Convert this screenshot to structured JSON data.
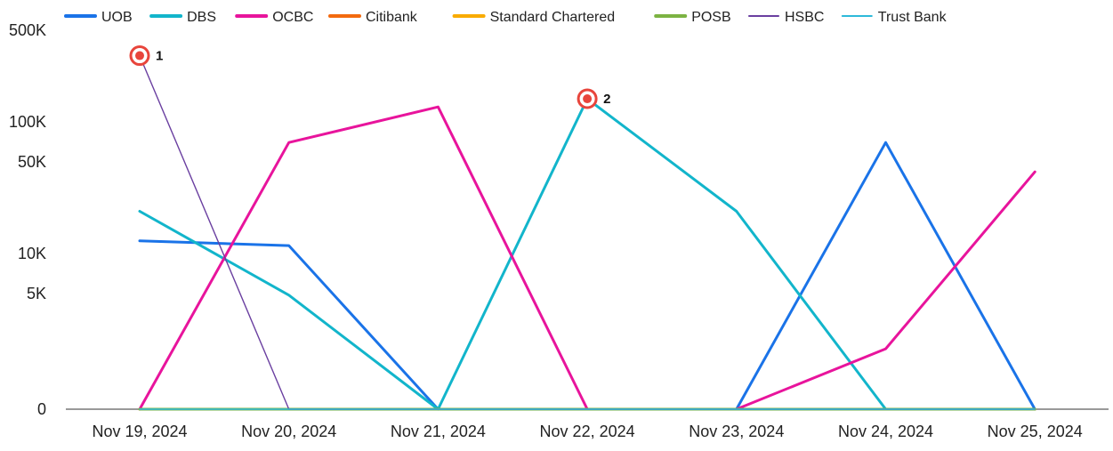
{
  "chart_data": {
    "type": "line",
    "title": "",
    "xlabel": "",
    "ylabel": "",
    "categories": [
      "Nov 19, 2024",
      "Nov 20, 2024",
      "Nov 21, 2024",
      "Nov 22, 2024",
      "Nov 23, 2024",
      "Nov 24, 2024",
      "Nov 25, 2024"
    ],
    "y_ticks": [
      {
        "value": 500000,
        "label": "500K"
      },
      {
        "value": 100000,
        "label": "100K"
      },
      {
        "value": 50000,
        "label": "50K"
      },
      {
        "value": 10000,
        "label": "10K"
      },
      {
        "value": 5000,
        "label": "5K"
      },
      {
        "value": 0,
        "label": "0"
      }
    ],
    "scale": "log",
    "grid": false,
    "legend_position": "top",
    "series": [
      {
        "name": "UOB",
        "color": "#1a73e8",
        "values": [
          12500,
          11500,
          0,
          0,
          0,
          70000,
          0
        ]
      },
      {
        "name": "DBS",
        "color": "#12b5cb",
        "values": [
          21000,
          4800,
          0,
          150000,
          21000,
          0,
          0
        ]
      },
      {
        "name": "OCBC",
        "color": "#e8149c",
        "values": [
          0,
          70000,
          130000,
          0,
          0,
          1200,
          42000
        ]
      },
      {
        "name": "Citibank",
        "color": "#f36a0f",
        "values": [
          0,
          0,
          0,
          0,
          0,
          0,
          0
        ]
      },
      {
        "name": "Standard Chartered",
        "color": "#f9ab00",
        "values": [
          0,
          0,
          0,
          0,
          0,
          0,
          0
        ]
      },
      {
        "name": "POSB",
        "color": "#7cb342",
        "values": [
          0,
          0,
          0,
          0,
          0,
          0,
          0
        ]
      },
      {
        "name": "HSBC",
        "color": "#6a3fa0",
        "values": [
          320000,
          0,
          0,
          0,
          0,
          0,
          0
        ]
      },
      {
        "name": "Trust Bank",
        "color": "#2eb9d9",
        "values": [
          0,
          0,
          0,
          0,
          0,
          0,
          0
        ]
      }
    ],
    "annotations": [
      {
        "label": "1",
        "category": "Nov 19, 2024",
        "series": "HSBC",
        "value": 320000
      },
      {
        "label": "2",
        "category": "Nov 22, 2024",
        "series": "DBS",
        "value": 150000
      }
    ]
  }
}
